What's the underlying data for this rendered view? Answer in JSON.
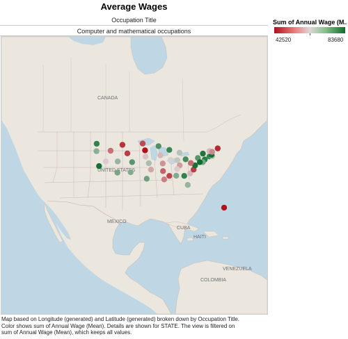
{
  "title": "Average Wages",
  "header": {
    "column_label": "Occupation Title",
    "occupation": "Computer and mathematical occupations"
  },
  "legend": {
    "title": "Sum of Annual Wage (M..",
    "min": "42520",
    "max": "83680",
    "color_low": "#b0111b",
    "color_mid": "#ddd6d6",
    "color_high": "#0d6e2f"
  },
  "map_labels": {
    "canada": "CANADA",
    "united_states": "UNITED STATES",
    "mexico": "MEXICO",
    "cuba": "CUBA",
    "haiti": "HAITI",
    "venezuela": "VENEZUELA",
    "colombia": "COLOMBIA"
  },
  "caption": {
    "line1": "Map based on Longitude (generated) and Latitude (generated) broken down by Occupation Title.",
    "line2": "Color shows sum of Annual Wage (Mean).  Details are shown for STATE. The view is filtered on",
    "line3": "sum of Annual Wage (Mean), which keeps all values."
  },
  "chart_data": {
    "type": "map",
    "measure": "Sum of Annual Wage (Mean)",
    "color_range": [
      42520,
      83680
    ],
    "points": [
      {
        "lon": -120.5,
        "lat": 47.4,
        "wage": 80000
      },
      {
        "lon": -120.6,
        "lat": 44.0,
        "wage": 71000
      },
      {
        "lon": -114.6,
        "lat": 44.2,
        "wage": 52500
      },
      {
        "lon": -109.6,
        "lat": 46.9,
        "wage": 46000
      },
      {
        "lon": -107.5,
        "lat": 43.0,
        "wage": 47000
      },
      {
        "lon": -101.0,
        "lat": 47.5,
        "wage": 48500
      },
      {
        "lon": -100.0,
        "lat": 44.4,
        "wage": 42520
      },
      {
        "lon": -94.3,
        "lat": 46.3,
        "wage": 77000
      },
      {
        "lon": -116.6,
        "lat": 39.3,
        "wage": 62000
      },
      {
        "lon": -119.5,
        "lat": 37.2,
        "wage": 83000
      },
      {
        "lon": -111.6,
        "lat": 39.3,
        "wage": 70000
      },
      {
        "lon": -105.5,
        "lat": 39.0,
        "wage": 76000
      },
      {
        "lon": -99.8,
        "lat": 41.5,
        "wage": 61000
      },
      {
        "lon": -98.4,
        "lat": 38.5,
        "wage": 68000
      },
      {
        "lon": -111.7,
        "lat": 34.2,
        "wage": 73000
      },
      {
        "lon": -106.1,
        "lat": 34.4,
        "wage": 72000
      },
      {
        "lon": -97.5,
        "lat": 35.6,
        "wage": 58000
      },
      {
        "lon": -99.3,
        "lat": 31.4,
        "wage": 74000
      },
      {
        "lon": -93.5,
        "lat": 42.1,
        "wage": 60000
      },
      {
        "lon": -92.5,
        "lat": 38.4,
        "wage": 56000
      },
      {
        "lon": -92.4,
        "lat": 34.9,
        "wage": 51000
      },
      {
        "lon": -91.9,
        "lat": 31.1,
        "wage": 54000
      },
      {
        "lon": -89.7,
        "lat": 44.6,
        "wage": 79000
      },
      {
        "lon": -89.2,
        "lat": 40.0,
        "wage": 64000
      },
      {
        "lon": -86.3,
        "lat": 39.9,
        "wage": 66000
      },
      {
        "lon": -85.4,
        "lat": 43.3,
        "wage": 67000
      },
      {
        "lon": -82.8,
        "lat": 40.3,
        "wage": 78000
      },
      {
        "lon": -85.3,
        "lat": 37.5,
        "wage": 57000
      },
      {
        "lon": -86.4,
        "lat": 35.8,
        "wage": 62000
      },
      {
        "lon": -89.7,
        "lat": 32.7,
        "wage": 48000
      },
      {
        "lon": -86.8,
        "lat": 32.8,
        "wage": 72000
      },
      {
        "lon": -83.4,
        "lat": 32.7,
        "wage": 80000
      },
      {
        "lon": -81.9,
        "lat": 28.6,
        "wage": 70000
      },
      {
        "lon": -80.9,
        "lat": 33.9,
        "wage": 60000
      },
      {
        "lon": -79.4,
        "lat": 35.6,
        "wage": 47000
      },
      {
        "lon": -78.8,
        "lat": 37.5,
        "wage": 83000
      },
      {
        "lon": -80.6,
        "lat": 38.6,
        "wage": 52000
      },
      {
        "lon": -77.6,
        "lat": 40.9,
        "wage": 76000
      },
      {
        "lon": -75.5,
        "lat": 42.9,
        "wage": 82000
      },
      {
        "lon": -74.7,
        "lat": 40.2,
        "wage": 81000
      },
      {
        "lon": -75.5,
        "lat": 39.0,
        "wage": 73000
      },
      {
        "lon": -76.8,
        "lat": 39.0,
        "wage": 83680
      },
      {
        "lon": -72.7,
        "lat": 41.6,
        "wage": 79000
      },
      {
        "lon": -71.5,
        "lat": 41.7,
        "wage": 66000
      },
      {
        "lon": -71.8,
        "lat": 42.3,
        "wage": 83000
      },
      {
        "lon": -72.7,
        "lat": 44.0,
        "wage": 60000
      },
      {
        "lon": -71.6,
        "lat": 43.7,
        "wage": 55000
      },
      {
        "lon": -69.2,
        "lat": 45.3,
        "wage": 45000
      },
      {
        "lon": -66.5,
        "lat": 18.2,
        "wage": 42520
      }
    ]
  }
}
